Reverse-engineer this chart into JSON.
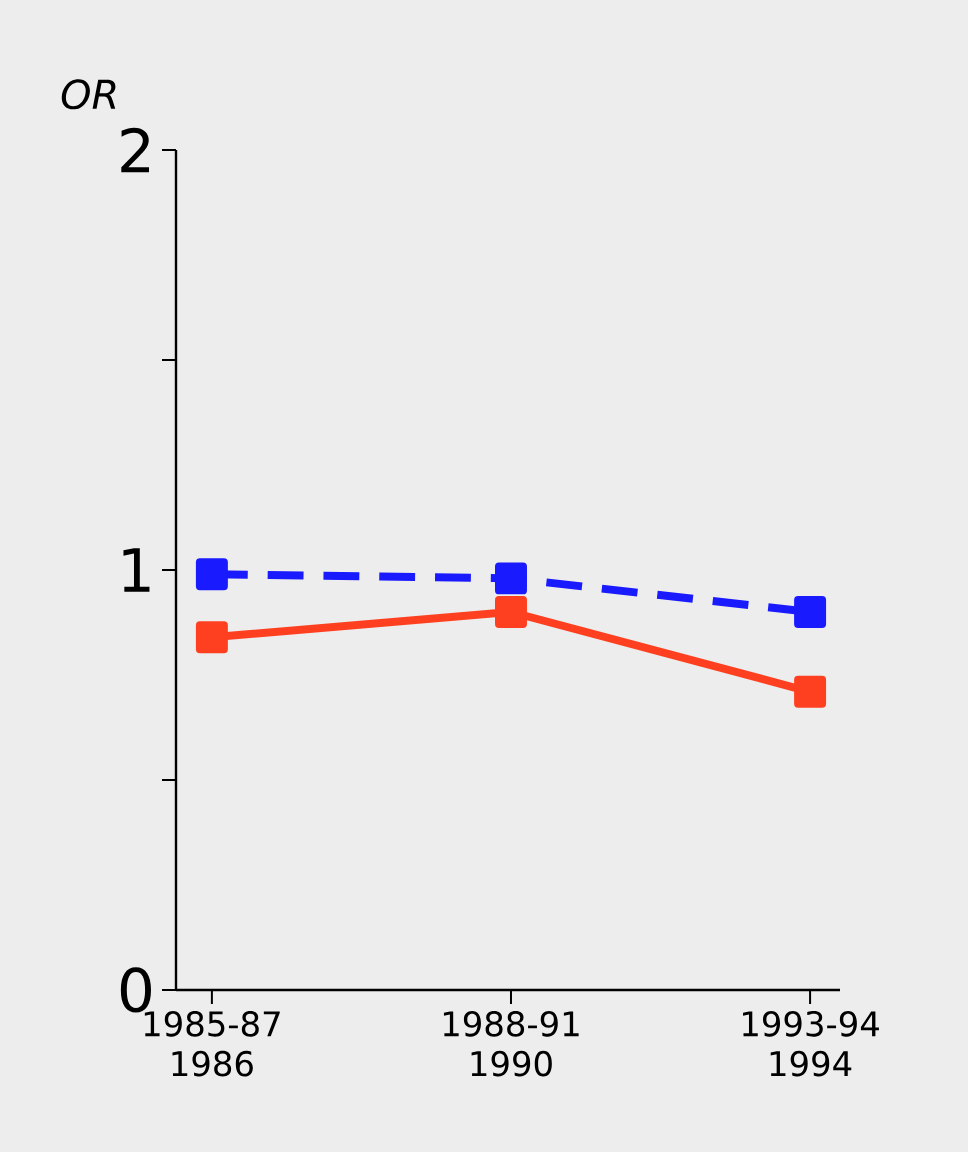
{
  "chart_data": {
    "type": "line",
    "ylabel": "OR",
    "categories": [
      "1985-87 1986",
      "1988-91 1990",
      "1993-94 1994"
    ],
    "series": [
      {
        "color": "#1a1aff",
        "values": [
          0.99,
          0.98,
          0.9
        ],
        "line_style": "dashed"
      },
      {
        "color": "#ff4020",
        "values": [
          0.84,
          0.9,
          0.71
        ],
        "line_style": "solid"
      }
    ],
    "ylim": [
      0,
      2
    ],
    "yticks": [
      0,
      {
        "value": 0.5,
        "label": null
      },
      1,
      {
        "value": 1.5,
        "label": null
      },
      2
    ],
    "marker": "square",
    "grid": false
  }
}
